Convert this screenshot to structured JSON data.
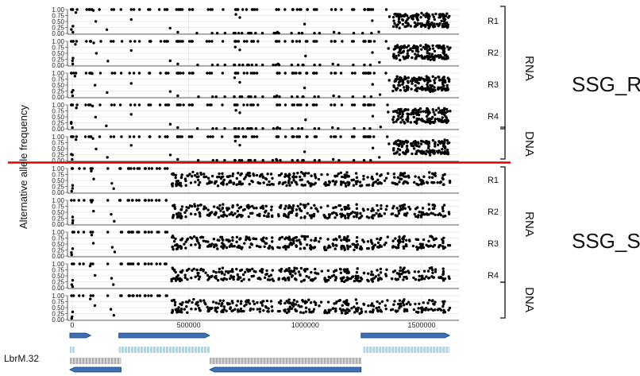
{
  "chart_data": {
    "type": "scatter",
    "ylabel": "Alternative allele frequency",
    "xlabel": "",
    "xlim": [
      -20000,
      1660000
    ],
    "ylim": [
      0,
      1
    ],
    "x_ticks": [
      0,
      500000,
      1000000,
      1500000
    ],
    "x_tick_labels": [
      "0",
      "500000",
      "1000000",
      "1500000"
    ],
    "y_ticks": [
      0,
      0.25,
      0.5,
      0.75,
      1
    ],
    "y_tick_labels": [
      "0.00",
      "0.25",
      "0.50",
      "0.75",
      "1.00"
    ],
    "grid": true,
    "groups": [
      {
        "label": "SSG_R",
        "panels": [
          {
            "strip": "R1",
            "type": "RNA"
          },
          {
            "strip": "R2",
            "type": "RNA"
          },
          {
            "strip": "R3",
            "type": "RNA"
          },
          {
            "strip": "R4",
            "type": "RNA"
          },
          {
            "strip": "",
            "type": "DNA"
          }
        ],
        "rna_label": "RNA",
        "dna_label": "DNA",
        "pattern": "mostly homozygous (~1.0) with scattered low-frequency sites; heterozygous cluster (0.25-0.75) from ~1380000 to ~1620000"
      },
      {
        "label": "SSG_S",
        "panels": [
          {
            "strip": "R1",
            "type": "RNA"
          },
          {
            "strip": "R2",
            "type": "RNA"
          },
          {
            "strip": "R3",
            "type": "RNA"
          },
          {
            "strip": "R4",
            "type": "RNA"
          },
          {
            "strip": "",
            "type": "DNA"
          }
        ],
        "rna_label": "RNA",
        "dna_label": "DNA",
        "pattern": "homozygous (~1.0) up to ~430000; heterozygous (0.25-0.75) from ~430000 to ~1620000"
      }
    ],
    "gene_track": {
      "label": "LbrM.32",
      "forward_arrows": [
        [
          -10000,
          80000
        ],
        [
          200000,
          590000
        ],
        [
          1240000,
          1620000
        ]
      ],
      "reverse_arrows": [
        [
          -10000,
          210000
        ],
        [
          590000,
          1240000
        ]
      ],
      "forward_genes": [
        [
          -10000,
          10000
        ],
        [
          200000,
          590000
        ],
        [
          1250000,
          1620000
        ]
      ],
      "reverse_genes": [
        [
          -10000,
          210000
        ],
        [
          590000,
          1240000
        ]
      ]
    }
  }
}
